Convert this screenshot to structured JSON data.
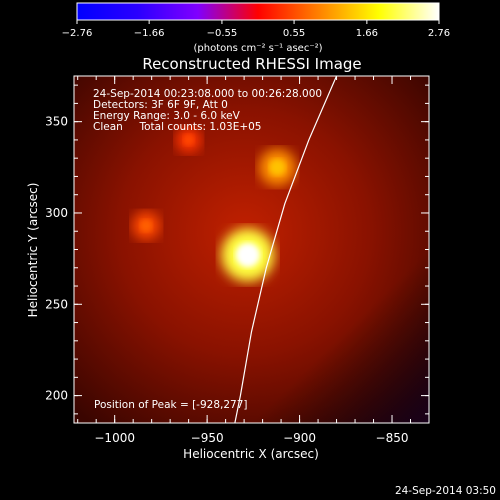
{
  "chart_data": {
    "type": "heatmap",
    "title": "Reconstructed RHESSI Image",
    "xlabel": "Heliocentric X (arcsec)",
    "ylabel": "Heliocentric Y (arcsec)",
    "xlim": [
      -1022,
      -830
    ],
    "ylim": [
      185,
      375
    ],
    "x_ticks": [
      -1000,
      -950,
      -900,
      -850
    ],
    "x_tick_labels": [
      "−1000",
      "−950",
      "−900",
      "−850"
    ],
    "y_ticks": [
      200,
      250,
      300,
      350
    ],
    "y_tick_labels": [
      "200",
      "250",
      "300",
      "350"
    ],
    "colorbar": {
      "min": -2.76,
      "max": 2.76,
      "ticks": [
        -2.76,
        -1.66,
        -0.55,
        0.55,
        1.66,
        2.76
      ],
      "tick_labels": [
        "−2.76",
        "−1.66",
        "−0.55",
        "0.55",
        "1.66",
        "2.76"
      ],
      "unit_label": "(photons cm⁻² s⁻¹ asec⁻²)",
      "colormap_stops": [
        "#0000ff",
        "#2a00ff",
        "#8000ff",
        "#ff0000",
        "#ff8000",
        "#ffff00",
        "#ffffff"
      ]
    },
    "annotations": [
      "24-Sep-2014 00:23:08.000 to 00:26:28.000",
      "Detectors: 3F 6F 9F, Att 0",
      "Energy Range: 3.0 - 6.0 keV",
      "Clean     Total counts: 1.03E+05"
    ],
    "peak_label": "Position of Peak = [-928,277]",
    "peak_position": [
      -928,
      277
    ],
    "sources": [
      {
        "x": -928,
        "y": 277,
        "intensity": 2.76
      },
      {
        "x": -912,
        "y": 325,
        "intensity": 1.4
      },
      {
        "x": -983,
        "y": 293,
        "intensity": 0.7
      },
      {
        "x": -960,
        "y": 340,
        "intensity": 0.5
      }
    ],
    "limb_curve": [
      [
        -880,
        375
      ],
      [
        -895,
        340
      ],
      [
        -908,
        305
      ],
      [
        -918,
        270
      ],
      [
        -926,
        235
      ],
      [
        -932,
        200
      ],
      [
        -935,
        185
      ]
    ],
    "timestamp": "24-Sep-2014 03:50"
  }
}
